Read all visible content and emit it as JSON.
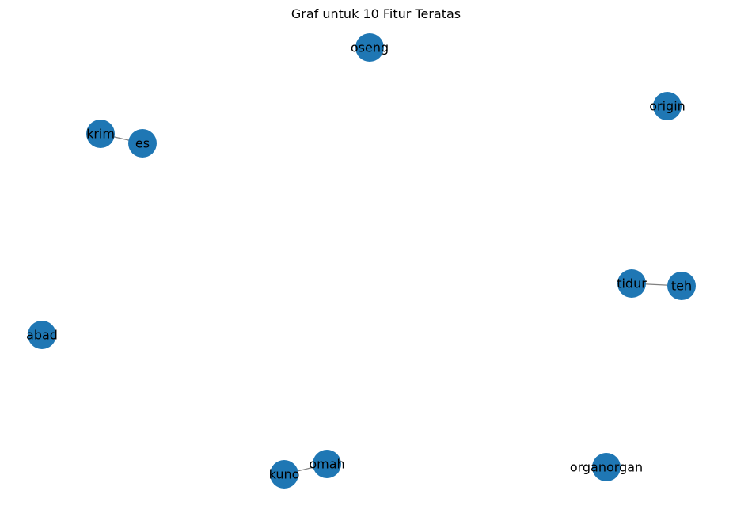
{
  "figure": {
    "title": "Graf untuk 10 Fitur Teratas"
  },
  "graph": {
    "node_color": "#1f77b4",
    "edge_color": "#808080",
    "nodes": [
      {
        "id": "oseng",
        "label": "oseng"
      },
      {
        "id": "origin",
        "label": "origin"
      },
      {
        "id": "krim",
        "label": "krim"
      },
      {
        "id": "es",
        "label": "es"
      },
      {
        "id": "tidur",
        "label": "tidur"
      },
      {
        "id": "teh",
        "label": "teh"
      },
      {
        "id": "abad",
        "label": "abad"
      },
      {
        "id": "omah",
        "label": "omah"
      },
      {
        "id": "kuno",
        "label": "kuno"
      },
      {
        "id": "organorgan",
        "label": "organorgan"
      }
    ],
    "edges": [
      {
        "source": "krim",
        "target": "es"
      },
      {
        "source": "tidur",
        "target": "teh"
      },
      {
        "source": "kuno",
        "target": "omah"
      }
    ]
  }
}
